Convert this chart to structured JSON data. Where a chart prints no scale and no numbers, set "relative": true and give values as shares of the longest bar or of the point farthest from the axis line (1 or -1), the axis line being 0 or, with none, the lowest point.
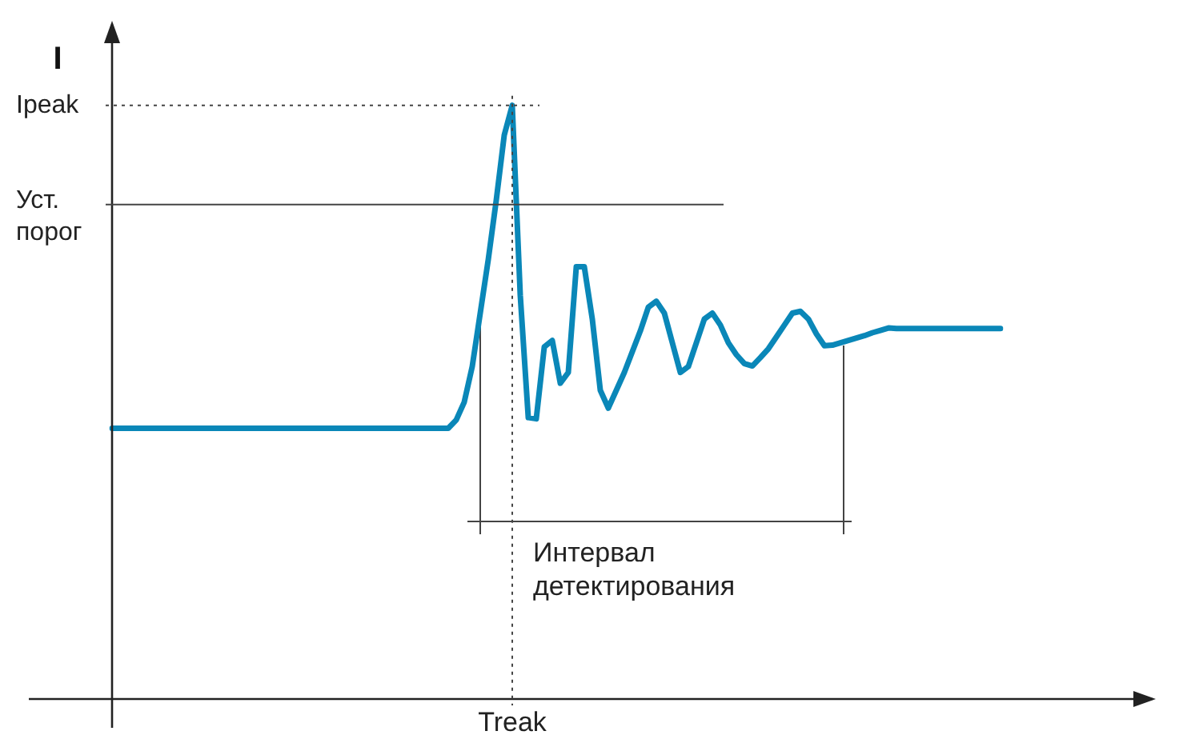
{
  "chart_data": {
    "type": "line",
    "ylabel": "I",
    "relative": true,
    "categories": [
      null,
      null,
      null,
      null,
      null,
      null,
      null,
      null,
      null,
      null,
      null,
      null,
      null,
      null,
      null,
      null,
      null,
      null,
      null,
      null,
      null,
      null,
      null,
      null,
      null,
      null,
      null,
      null,
      null,
      null,
      null,
      null,
      null,
      null,
      null,
      null,
      null,
      null,
      null,
      null,
      null,
      null,
      null,
      null,
      null,
      null,
      null,
      null,
      null,
      null,
      null,
      null,
      null,
      null,
      null,
      null,
      null,
      null,
      null,
      null,
      null,
      null,
      null,
      null,
      null,
      null,
      null,
      null,
      null,
      null,
      null,
      null,
      null,
      null,
      null,
      null,
      null,
      null,
      null,
      null,
      null,
      null,
      null,
      null,
      null,
      null,
      null,
      null,
      null,
      null,
      null,
      null,
      null,
      null,
      null,
      null,
      null,
      null,
      null,
      null,
      null,
      null,
      null,
      null,
      null,
      null,
      null,
      null,
      null,
      null,
      null,
      null
    ],
    "series": [
      {
        "color": "#0a87b8",
        "values": [
          0.456,
          0.456,
          0.456,
          0.456,
          0.456,
          0.456,
          0.456,
          0.456,
          0.456,
          0.456,
          0.456,
          0.456,
          0.456,
          0.456,
          0.456,
          0.456,
          0.456,
          0.456,
          0.456,
          0.456,
          0.456,
          0.456,
          0.456,
          0.456,
          0.456,
          0.456,
          0.456,
          0.456,
          0.456,
          0.456,
          0.456,
          0.456,
          0.456,
          0.456,
          0.456,
          0.456,
          0.456,
          0.456,
          0.456,
          0.456,
          0.456,
          0.456,
          0.456,
          0.47,
          0.5,
          0.56,
          0.65,
          0.74,
          0.84,
          0.95,
          1.0,
          0.68,
          0.474,
          0.472,
          0.593,
          0.604,
          0.532,
          0.55,
          0.728,
          0.728,
          0.64,
          0.52,
          0.49,
          0.52,
          0.55,
          0.585,
          0.62,
          0.66,
          0.67,
          0.65,
          0.6,
          0.55,
          0.56,
          0.6,
          0.64,
          0.65,
          0.63,
          0.6,
          0.58,
          0.565,
          0.561,
          0.575,
          0.59,
          0.61,
          0.63,
          0.65,
          0.653,
          0.64,
          0.615,
          0.595,
          0.596,
          0.6,
          0.604,
          0.608,
          0.612,
          0.617,
          0.621,
          0.625,
          0.624,
          0.624,
          0.624,
          0.624,
          0.624,
          0.624,
          0.624,
          0.624,
          0.624,
          0.624,
          0.624,
          0.624,
          0.624,
          0.624
        ]
      }
    ],
    "ref_lines": [
      {
        "axis": "y",
        "value": 1,
        "line_style": "dotted",
        "label": "Ipeak"
      },
      {
        "axis": "y",
        "value": 0.833,
        "line_style": "solid",
        "label": "Уст. порог"
      }
    ],
    "annotations": [
      "Treak",
      "Интервал детектирования"
    ],
    "legend": false,
    "marker": "none",
    "line_style": "solid"
  }
}
